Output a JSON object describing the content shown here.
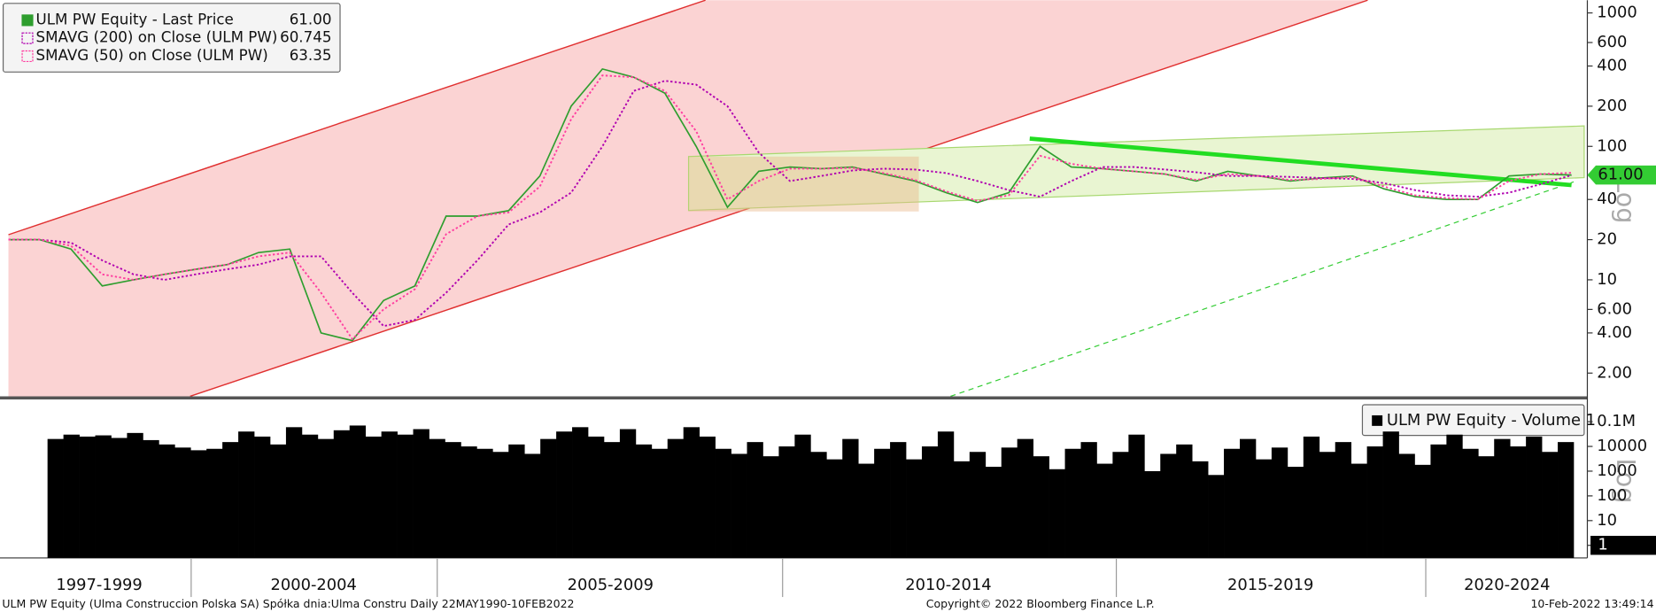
{
  "chart_data": [
    {
      "type": "line",
      "log_scale": true,
      "ylim": [
        1.34,
        1245
      ],
      "yticks": [
        {
          "value": 2,
          "label": "2.00"
        },
        {
          "value": 4,
          "label": "4.00"
        },
        {
          "value": 6,
          "label": "6.00"
        },
        10,
        20,
        40,
        100,
        200,
        400,
        600,
        1000
      ],
      "axis_label": "Log",
      "series": [
        {
          "name": "ULM PW Equity - Last Price",
          "legend_value": "61.00",
          "color": "#2e9e2e",
          "dash": "solid",
          "values": [
            20,
            20,
            17,
            9,
            10,
            11,
            12,
            13,
            16,
            17,
            4,
            3.5,
            7,
            9,
            30,
            30,
            33,
            60,
            200,
            380,
            330,
            250,
            100,
            35,
            65,
            70,
            68,
            70,
            62,
            55,
            45,
            38,
            45,
            100,
            70,
            68,
            65,
            62,
            55,
            65,
            60,
            55,
            58,
            60,
            48,
            42,
            40,
            40,
            60,
            62,
            61
          ]
        },
        {
          "name": "SMAVG (200)  on Close (ULM PW)",
          "legend_value": "60.745",
          "color": "#b000b0",
          "dash": "dotted",
          "values": [
            20,
            20,
            19,
            14,
            11,
            10,
            11,
            12,
            13,
            15,
            15,
            8,
            4.5,
            5,
            8,
            14,
            26,
            32,
            45,
            100,
            260,
            310,
            290,
            200,
            90,
            55,
            60,
            66,
            68,
            67,
            63,
            55,
            47,
            42,
            55,
            70,
            70,
            67,
            64,
            60,
            60,
            59,
            58,
            57,
            53,
            47,
            43,
            42,
            45,
            52,
            60.745
          ]
        },
        {
          "name": "SMAVG (50)  on Close (ULM PW)",
          "legend_value": "63.35",
          "color": "#ff3fa0",
          "dash": "dotted",
          "values": [
            20,
            20,
            18,
            11,
            10,
            11,
            12,
            13,
            15,
            16,
            8,
            3.6,
            6,
            8.5,
            22,
            30,
            32,
            50,
            160,
            340,
            330,
            260,
            130,
            40,
            55,
            68,
            68,
            69,
            63,
            56,
            46,
            39,
            43,
            85,
            74,
            68,
            65,
            62,
            56,
            62,
            60,
            56,
            57,
            59,
            50,
            43,
            41,
            40,
            55,
            62,
            63.35
          ]
        }
      ]
    },
    {
      "type": "bar",
      "log_scale": true,
      "ylim": [
        0.31,
        650000
      ],
      "yticks": [
        1,
        10,
        100,
        1000,
        10000,
        {
          "value": 100000,
          "label": "0.1M"
        }
      ],
      "axis_label": "Log",
      "current_value": 1,
      "series": [
        {
          "name": "ULM PW Equity - Volume 1",
          "color": "#000000",
          "values": [
            20000,
            30000,
            25000,
            28000,
            22000,
            35000,
            18000,
            12000,
            9000,
            7000,
            8000,
            15000,
            40000,
            25000,
            12000,
            60000,
            30000,
            20000,
            45000,
            70000,
            25000,
            40000,
            30000,
            50000,
            20000,
            15000,
            10000,
            8000,
            6000,
            12000,
            5000,
            20000,
            40000,
            60000,
            25000,
            15000,
            50000,
            12000,
            8000,
            20000,
            60000,
            25000,
            8000,
            5000,
            15000,
            4000,
            10000,
            30000,
            6000,
            3000,
            20000,
            2000,
            8000,
            15000,
            3000,
            10000,
            40000,
            2500,
            6000,
            1500,
            9000,
            20000,
            4000,
            1200,
            8000,
            15000,
            2000,
            6000,
            30000,
            1000,
            5000,
            12000,
            2500,
            700,
            8000,
            20000,
            3000,
            9000,
            1500,
            25000,
            6000,
            15000,
            2000,
            10000,
            40000,
            5000,
            1800,
            12000,
            30000,
            8000,
            4000,
            20000,
            10000,
            25000,
            6000,
            15000
          ]
        }
      ]
    }
  ],
  "x_axis": {
    "periods": [
      "1997-1999",
      "2000-2004",
      "2005-2009",
      "2010-2014",
      "2015-2019",
      "2020-2024"
    ]
  },
  "footer": {
    "left": "ULM PW Equity (Ulma Construccion Polska SA) Spółka dnia:Ulma Constru  Daily 22MAY1990-10FEB2022",
    "center": "Copyright© 2022 Bloomberg Finance L.P.",
    "right": "10-Feb-2022 13:49:14"
  }
}
